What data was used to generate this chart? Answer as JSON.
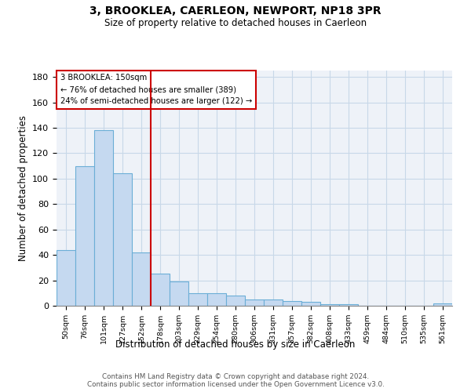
{
  "title": "3, BROOKLEA, CAERLEON, NEWPORT, NP18 3PR",
  "subtitle": "Size of property relative to detached houses in Caerleon",
  "xlabel": "Distribution of detached houses by size in Caerleon",
  "ylabel": "Number of detached properties",
  "bar_heights": [
    44,
    110,
    138,
    104,
    42,
    25,
    19,
    10,
    10,
    8,
    5,
    5,
    4,
    3,
    1,
    1,
    0,
    0,
    0,
    0,
    2
  ],
  "bar_labels": [
    "50sqm",
    "76sqm",
    "101sqm",
    "127sqm",
    "152sqm",
    "178sqm",
    "203sqm",
    "229sqm",
    "254sqm",
    "280sqm",
    "306sqm",
    "331sqm",
    "357sqm",
    "382sqm",
    "408sqm",
    "433sqm",
    "459sqm",
    "484sqm",
    "510sqm",
    "535sqm",
    "561sqm"
  ],
  "bar_color": "#c5d9f0",
  "bar_edge_color": "#6baed6",
  "vline_bar_index": 4,
  "property_label": "3 BROOKLEA: 150sqm",
  "annotation_line1": "← 76% of detached houses are smaller (389)",
  "annotation_line2": "24% of semi-detached houses are larger (122) →",
  "annotation_box_color": "#cc0000",
  "vline_color": "#cc0000",
  "ylim": [
    0,
    185
  ],
  "yticks": [
    0,
    20,
    40,
    60,
    80,
    100,
    120,
    140,
    160,
    180
  ],
  "grid_color": "#c8d8e8",
  "bg_color": "#eef2f8",
  "footer_line1": "Contains HM Land Registry data © Crown copyright and database right 2024.",
  "footer_line2": "Contains public sector information licensed under the Open Government Licence v3.0."
}
